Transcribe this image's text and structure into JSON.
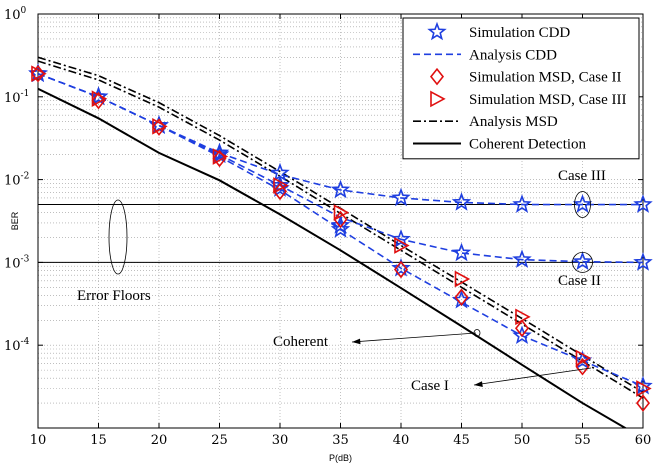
{
  "chart_data": {
    "type": "line",
    "title": "",
    "xlabel": "P(dB)",
    "ylabel": "BER",
    "xlim": [
      10,
      60
    ],
    "ylim": [
      1e-05,
      1
    ],
    "yscale": "log",
    "grid": true,
    "legend_position": "top-right",
    "x_ticks": [
      10,
      15,
      20,
      25,
      30,
      35,
      40,
      45,
      50,
      55,
      60
    ],
    "x_tick_labels": [
      "10",
      "15",
      "20",
      "25",
      "30",
      "35",
      "40",
      "45",
      "50",
      "55",
      "60"
    ],
    "y_ticks": [
      1,
      0.1,
      0.01,
      0.001,
      0.0001
    ],
    "y_tick_labels": [
      {
        "base": "10",
        "exp": "0"
      },
      {
        "base": "10",
        "exp": "-1"
      },
      {
        "base": "10",
        "exp": "-2"
      },
      {
        "base": "10",
        "exp": "-3"
      },
      {
        "base": "10",
        "exp": "-4"
      }
    ],
    "series": [
      {
        "name": "Simulation CDD",
        "color": "#1f3fe0",
        "line": "none",
        "marker": "star",
        "id": "sim_cdd_iii",
        "x": [
          10,
          15,
          20,
          25,
          30,
          35,
          40,
          45,
          50,
          55,
          60
        ],
        "y": [
          0.19,
          0.1,
          0.045,
          0.021,
          0.012,
          0.0075,
          0.006,
          0.0053,
          0.005,
          0.005,
          0.005
        ]
      },
      {
        "name": "",
        "color": "#1f3fe0",
        "line": "none",
        "marker": "star",
        "id": "sim_cdd_ii",
        "x": [
          10,
          15,
          20,
          25,
          30,
          35,
          40,
          45,
          50,
          55,
          60
        ],
        "y": [
          0.19,
          0.1,
          0.045,
          0.02,
          0.0085,
          0.0028,
          0.0019,
          0.0013,
          0.00108,
          0.00102,
          0.001
        ]
      },
      {
        "name": "",
        "color": "#1f3fe0",
        "line": "none",
        "marker": "star",
        "id": "sim_cdd_i",
        "x": [
          10,
          15,
          20,
          25,
          30,
          35,
          40,
          45,
          50,
          55,
          60
        ],
        "y": [
          0.19,
          0.1,
          0.045,
          0.02,
          0.0078,
          0.0025,
          0.00085,
          0.00035,
          0.00013,
          6.5e-05,
          3.2e-05
        ]
      },
      {
        "name": "Analysis CDD",
        "color": "#1f3fe0",
        "line": "dashed",
        "marker": "none",
        "id": "ana_cdd_iii",
        "x": [
          10,
          15,
          20,
          25,
          30,
          35,
          40,
          45,
          50,
          55,
          60
        ],
        "y": [
          0.19,
          0.1,
          0.045,
          0.021,
          0.0115,
          0.0075,
          0.006,
          0.0053,
          0.005,
          0.005,
          0.005
        ]
      },
      {
        "name": "",
        "color": "#1f3fe0",
        "line": "dashed",
        "marker": "none",
        "id": "ana_cdd_ii",
        "x": [
          10,
          15,
          20,
          25,
          30,
          35,
          40,
          45,
          50,
          55,
          60
        ],
        "y": [
          0.19,
          0.1,
          0.045,
          0.02,
          0.0085,
          0.0035,
          0.0019,
          0.0013,
          0.00108,
          0.00102,
          0.001
        ]
      },
      {
        "name": "",
        "color": "#1f3fe0",
        "line": "dashed",
        "marker": "none",
        "id": "ana_cdd_i",
        "x": [
          10,
          15,
          20,
          25,
          30,
          35,
          40,
          45,
          50,
          55,
          60
        ],
        "y": [
          0.19,
          0.1,
          0.045,
          0.019,
          0.0075,
          0.0025,
          0.00085,
          0.00033,
          0.00013,
          6.5e-05,
          3.2e-05
        ]
      },
      {
        "name": "Simulation MSD, Case II",
        "color": "#e01010",
        "line": "none",
        "marker": "diamond",
        "id": "sim_msd_ii",
        "x": [
          10,
          15,
          20,
          25,
          30,
          35,
          40,
          45,
          50,
          55,
          60
        ],
        "y": [
          0.19,
          0.09,
          0.043,
          0.018,
          0.0072,
          0.0033,
          0.00082,
          0.00038,
          0.00016,
          5.5e-05,
          2e-05
        ]
      },
      {
        "name": "Simulation MSD, Case III",
        "color": "#e01010",
        "line": "none",
        "marker": "triangle-right",
        "id": "sim_msd_iii",
        "x": [
          10,
          15,
          20,
          25,
          30,
          35,
          40,
          45,
          50,
          55,
          60
        ],
        "y": [
          0.19,
          0.095,
          0.044,
          0.019,
          0.0085,
          0.004,
          0.0016,
          0.00063,
          0.00022,
          7e-05,
          3e-05
        ]
      },
      {
        "name": "Analysis MSD",
        "color": "#000000",
        "line": "dashdot",
        "marker": "none",
        "id": "ana_msd_a",
        "x": [
          10,
          15,
          20,
          25,
          30,
          35,
          40,
          45,
          50,
          55,
          60
        ],
        "y": [
          0.3,
          0.18,
          0.085,
          0.034,
          0.0125,
          0.0045,
          0.0016,
          0.00058,
          0.00021,
          7.5e-05,
          2.7e-05
        ]
      },
      {
        "name": "",
        "color": "#000000",
        "line": "dashdot",
        "marker": "none",
        "id": "ana_msd_b",
        "x": [
          10,
          15,
          20,
          25,
          30,
          35,
          40,
          45,
          50,
          55,
          60
        ],
        "y": [
          0.27,
          0.16,
          0.075,
          0.03,
          0.011,
          0.0039,
          0.0014,
          0.0005,
          0.00018,
          6.4e-05,
          2.3e-05
        ]
      },
      {
        "name": "Coherent Detection",
        "color": "#000000",
        "line": "solid",
        "marker": "none",
        "id": "coherent",
        "x": [
          10,
          15,
          20,
          25,
          30,
          35,
          40,
          45,
          50,
          55,
          60
        ],
        "y": [
          0.125,
          0.055,
          0.021,
          0.0098,
          0.0038,
          0.0014,
          0.00049,
          0.00017,
          5.8e-05,
          2e-05,
          7.5e-06
        ]
      }
    ],
    "floors": [
      0.005,
      0.001
    ],
    "annotations": {
      "case_iii": "Case III",
      "case_ii": "Case II",
      "error_floors": "Error Floors",
      "coherent": "Coherent",
      "case_i": "Case I"
    },
    "legend_entries": [
      {
        "label": "Simulation CDD",
        "color": "#1f3fe0",
        "line": "none",
        "marker": "star"
      },
      {
        "label": "Analysis CDD",
        "color": "#1f3fe0",
        "line": "dashed",
        "marker": "none"
      },
      {
        "label": "Simulation MSD, Case II",
        "color": "#e01010",
        "line": "none",
        "marker": "diamond"
      },
      {
        "label": "Simulation MSD, Case III",
        "color": "#e01010",
        "line": "none",
        "marker": "triangle-right"
      },
      {
        "label": "Analysis MSD",
        "color": "#000000",
        "line": "dashdot",
        "marker": "none"
      },
      {
        "label": "Coherent Detection",
        "color": "#000000",
        "line": "solid",
        "marker": "none"
      }
    ]
  }
}
